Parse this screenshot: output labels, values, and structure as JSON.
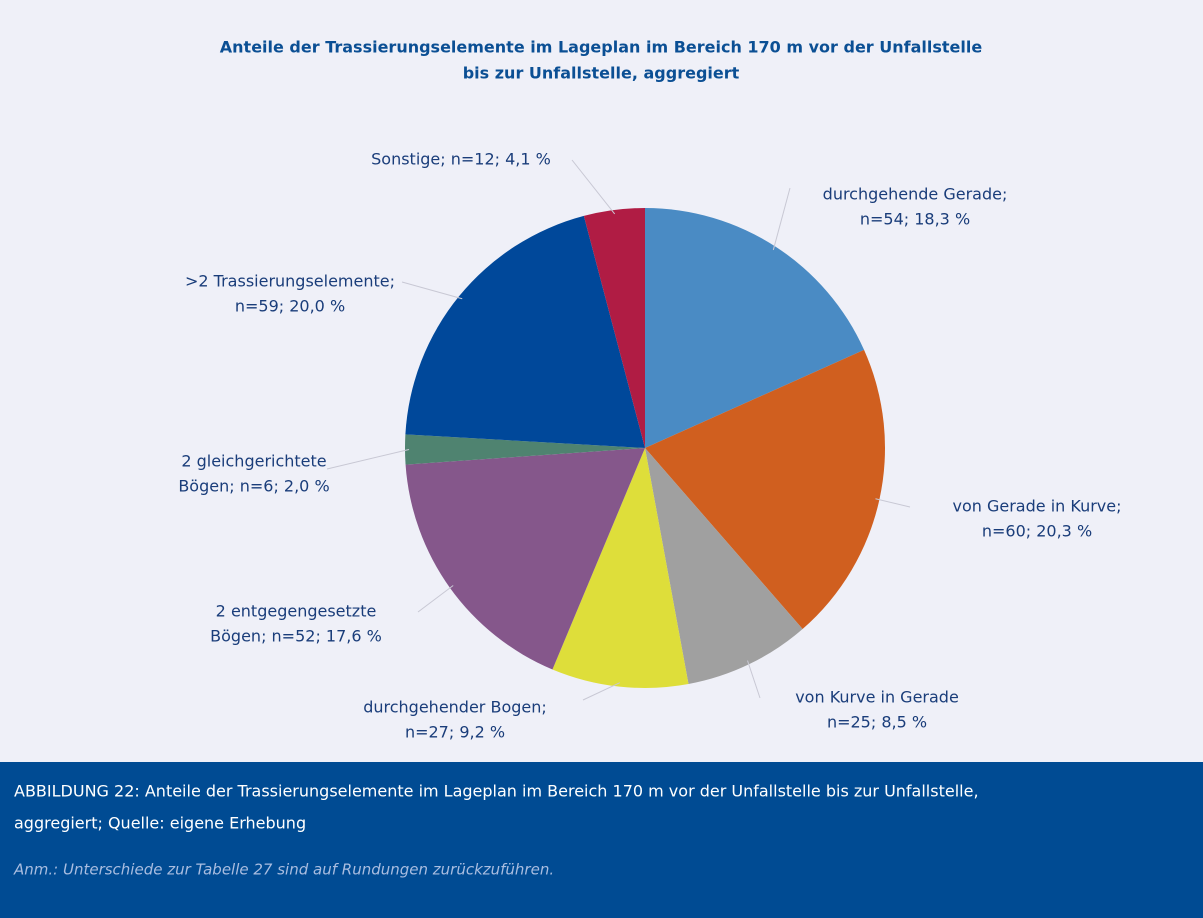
{
  "chart_data": {
    "type": "pie",
    "title": [
      "Anteile der Trassierungselemente im Lageplan im Bereich 170 m vor der Unfallstelle",
      "bis zur Unfallstelle, aggregiert"
    ],
    "values": [
      18.3,
      20.3,
      8.5,
      9.2,
      17.6,
      2.0,
      20.0,
      4.1
    ],
    "value_labels": [
      [
        "durchgehende Gerade;",
        "n=54; 18,3 %"
      ],
      [
        "von Gerade in Kurve;",
        "n=60; 20,3 %"
      ],
      [
        "von Kurve in Gerade",
        "n=25; 8,5 %"
      ],
      [
        "durchgehender Bogen;",
        "n=27; 9,2 %"
      ],
      [
        "2 entgegengesetzte",
        "Bögen; n=52; 17,6 %"
      ],
      [
        "2 gleichgerichtete",
        "Bögen; n=6; 2,0 %"
      ],
      [
        ">2 Trassierungselemente;",
        "n=59; 20,0 %"
      ],
      [
        "Sonstige; n=12; 4,1 %"
      ]
    ],
    "colors": [
      "#4a8bc4",
      "#d05f1f",
      "#a0a0a0",
      "#dede3a",
      "#85578b",
      "#4f8370",
      "#00489a",
      "#b01c44"
    ]
  },
  "caption": {
    "lines": [
      "ABBILDUNG 22: Anteile der Trassierungselemente im Lageplan im Bereich 170 m vor der Unfallstelle bis zur Unfallstelle,",
      "aggregiert; Quelle: eigene Erhebung"
    ],
    "note": "Anm.: Unterschiede zur Tabelle 27 sind auf Rundungen zurückzuführen."
  }
}
